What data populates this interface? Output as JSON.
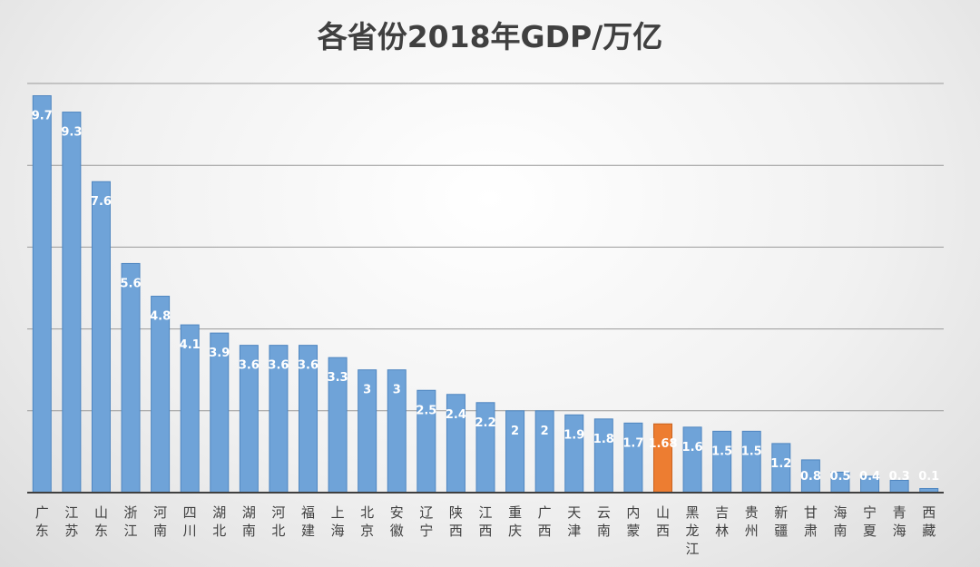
{
  "chart_data": {
    "type": "bar",
    "title": "各省份2018年GDP/万亿",
    "xlabel": "",
    "ylabel": "",
    "ylim": [
      0,
      10
    ],
    "grid": true,
    "categories": [
      "广东",
      "江苏",
      "山东",
      "浙江",
      "河南",
      "四川",
      "湖北",
      "湖南",
      "河北",
      "福建",
      "上海",
      "北京",
      "安徽",
      "辽宁",
      "陕西",
      "江西",
      "重庆",
      "广西",
      "天津",
      "云南",
      "内蒙",
      "山西",
      "黑龙江",
      "吉林",
      "贵州",
      "新疆",
      "甘肃",
      "海南",
      "宁夏",
      "青海",
      "西藏"
    ],
    "values": [
      9.7,
      9.3,
      7.6,
      5.6,
      4.8,
      4.1,
      3.9,
      3.6,
      3.6,
      3.6,
      3.3,
      3,
      3,
      2.5,
      2.4,
      2.2,
      2,
      2,
      1.9,
      1.8,
      1.7,
      1.68,
      1.6,
      1.5,
      1.5,
      1.2,
      0.8,
      0.5,
      0.4,
      0.3,
      0.1
    ],
    "data_labels": [
      "9.7",
      "9.3",
      "7.6",
      "5.6",
      "4.8",
      "4.1",
      "3.9",
      "3.6",
      "3.6",
      "3.6",
      "3.3",
      "3",
      "3",
      "2.5",
      "2.4",
      "2.2",
      "2",
      "2",
      "1.9",
      "1.8",
      "1.7",
      "1.68",
      "1.6",
      "1.5",
      "1.5",
      "1.2",
      "0.8",
      "0.5",
      "0.4",
      "0.3",
      "0.1"
    ],
    "highlight_category": "山西",
    "colors": {
      "bar": "#6fa3d8",
      "bar_edge": "#4f86c0",
      "highlight": "#ed7d31",
      "grid": "#9a9a9a",
      "axis": "#404040",
      "label": "#404040"
    }
  }
}
